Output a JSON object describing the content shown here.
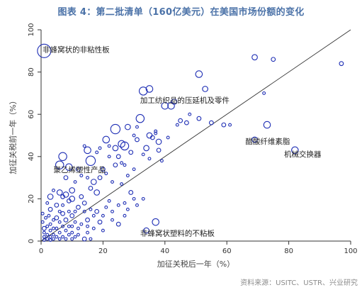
{
  "header": {
    "title": "图表 4：第二批清单（160亿美元）在美国市场份额的变化"
  },
  "footer": {
    "source": "资料来源：USITC、USTR、兴业研究"
  },
  "chart_data": {
    "type": "scatter",
    "title": "图表 4：第二批清单（160亿美元）在美国市场份额的变化",
    "xlabel": "加征关税后一年（%）",
    "ylabel": "加征关税前一年（%）",
    "xlim": [
      0,
      100
    ],
    "ylim": [
      0,
      100
    ],
    "xticks": [
      0,
      20,
      40,
      60,
      80,
      100
    ],
    "yticks": [
      0,
      20,
      40,
      60,
      80,
      100
    ],
    "grid": false,
    "reference_line": {
      "from": [
        0,
        0
      ],
      "to": [
        100,
        100
      ]
    },
    "point_color": "#1f2fb5",
    "annotations": [
      {
        "text": "非蜂窝状的非粘性板",
        "x": 0.5,
        "y": 90.5
      },
      {
        "text": "加工纺织品的压延机及零件",
        "x": 32,
        "y": 66.5
      },
      {
        "text": "醋酸纤维素脂",
        "x": 66,
        "y": 47
      },
      {
        "text": "机械交换器",
        "x": 78.5,
        "y": 41
      },
      {
        "text": "聚乙烯塑性产品",
        "x": 4,
        "y": 33.5
      },
      {
        "text": "非蜂窝状塑料的不粘板",
        "x": 32,
        "y": 3.5
      }
    ],
    "points": [
      [
        1,
        90,
        10
      ],
      [
        69,
        87,
        4
      ],
      [
        75,
        86,
        3
      ],
      [
        97,
        84,
        3
      ],
      [
        51,
        79,
        5
      ],
      [
        53,
        72,
        4
      ],
      [
        33,
        71,
        6
      ],
      [
        35,
        72,
        5
      ],
      [
        43,
        66,
        4
      ],
      [
        40,
        64,
        5
      ],
      [
        42,
        64,
        5
      ],
      [
        51,
        58,
        3
      ],
      [
        55,
        56,
        3
      ],
      [
        59,
        55,
        3
      ],
      [
        31,
        54,
        2
      ],
      [
        32,
        58,
        6
      ],
      [
        28,
        54,
        4
      ],
      [
        24,
        53,
        7
      ],
      [
        21,
        48,
        5
      ],
      [
        35,
        50,
        4
      ],
      [
        38,
        47,
        4
      ],
      [
        31,
        48,
        3
      ],
      [
        36,
        49,
        3
      ],
      [
        37,
        52,
        2
      ],
      [
        30,
        50,
        2
      ],
      [
        34,
        44,
        4
      ],
      [
        38,
        43,
        3
      ],
      [
        24,
        44,
        4
      ],
      [
        26,
        46,
        5
      ],
      [
        27,
        45,
        6
      ],
      [
        29,
        42,
        3
      ],
      [
        25,
        40,
        3
      ],
      [
        15,
        43,
        5
      ],
      [
        16,
        38,
        7
      ],
      [
        14,
        45,
        2
      ],
      [
        18,
        42,
        2
      ],
      [
        19,
        44,
        2
      ],
      [
        22,
        45,
        2
      ],
      [
        22,
        40,
        2
      ],
      [
        26,
        37,
        2
      ],
      [
        27,
        36,
        2
      ],
      [
        33,
        41,
        2
      ],
      [
        35,
        39,
        2
      ],
      [
        20,
        34,
        3
      ],
      [
        21,
        32,
        2
      ],
      [
        24,
        36,
        3
      ],
      [
        19,
        30,
        3
      ],
      [
        17,
        28,
        4
      ],
      [
        15,
        30,
        2
      ],
      [
        16,
        25,
        3
      ],
      [
        18,
        23,
        4
      ],
      [
        23,
        28,
        2
      ],
      [
        26,
        27,
        2
      ],
      [
        13,
        31,
        2
      ],
      [
        12,
        34,
        3
      ],
      [
        11,
        28,
        2
      ],
      [
        10,
        24,
        4
      ],
      [
        9,
        35,
        5
      ],
      [
        7,
        40,
        6
      ],
      [
        6,
        36,
        6
      ],
      [
        8,
        30,
        3
      ],
      [
        10,
        20,
        4
      ],
      [
        8,
        22,
        4
      ],
      [
        9,
        19,
        3
      ],
      [
        7,
        21,
        3
      ],
      [
        6,
        23,
        4
      ],
      [
        5,
        17,
        3
      ],
      [
        4,
        24,
        2
      ],
      [
        3,
        21,
        4
      ],
      [
        3,
        15,
        3
      ],
      [
        2,
        18,
        2
      ],
      [
        13,
        21,
        3
      ],
      [
        14,
        18,
        3
      ],
      [
        12,
        16,
        3
      ],
      [
        11,
        14,
        2
      ],
      [
        10,
        12,
        3
      ],
      [
        8,
        10,
        3
      ],
      [
        7,
        13,
        3
      ],
      [
        6,
        9,
        2
      ],
      [
        5,
        11,
        3
      ],
      [
        4,
        10,
        2
      ],
      [
        3,
        8,
        2
      ],
      [
        2,
        7,
        2
      ],
      [
        1,
        6,
        3
      ],
      [
        1,
        4,
        2
      ],
      [
        2,
        3,
        2
      ],
      [
        3,
        5,
        2
      ],
      [
        4,
        3,
        2
      ],
      [
        5,
        6,
        2
      ],
      [
        6,
        4,
        2
      ],
      [
        7,
        7,
        2
      ],
      [
        8,
        5,
        2
      ],
      [
        9,
        7,
        2
      ],
      [
        10,
        4,
        2
      ],
      [
        11,
        9,
        2
      ],
      [
        12,
        6,
        2
      ],
      [
        1,
        2,
        2
      ],
      [
        2,
        1,
        2
      ],
      [
        3,
        2,
        2
      ],
      [
        4,
        6,
        2
      ],
      [
        0.5,
        9,
        2
      ],
      [
        1.5,
        11,
        2
      ],
      [
        0.5,
        13,
        2
      ],
      [
        2.5,
        12,
        2
      ],
      [
        6,
        14,
        2
      ],
      [
        7,
        17,
        2
      ],
      [
        9,
        14,
        2
      ],
      [
        14,
        14,
        2
      ],
      [
        15,
        10,
        3
      ],
      [
        16,
        15,
        2
      ],
      [
        17,
        12,
        2
      ],
      [
        18,
        14,
        3
      ],
      [
        20,
        12,
        2
      ],
      [
        19,
        9,
        3
      ],
      [
        21,
        16,
        2
      ],
      [
        22,
        19,
        2
      ],
      [
        23,
        14,
        2
      ],
      [
        25,
        17,
        2
      ],
      [
        27,
        18,
        2
      ],
      [
        28,
        15,
        2
      ],
      [
        30,
        20,
        2
      ],
      [
        29,
        23,
        3
      ],
      [
        31,
        17,
        2
      ],
      [
        33,
        20,
        2
      ],
      [
        15,
        7,
        2
      ],
      [
        13,
        8,
        2
      ],
      [
        17,
        6,
        2
      ],
      [
        20,
        5,
        2
      ],
      [
        10,
        7,
        2
      ],
      [
        12,
        3,
        2
      ],
      [
        15,
        4,
        2
      ],
      [
        5,
        2,
        2
      ],
      [
        6,
        1,
        2
      ],
      [
        7,
        2,
        2
      ],
      [
        10,
        1,
        2
      ],
      [
        14,
        1,
        3
      ],
      [
        16,
        1,
        2
      ],
      [
        8,
        1,
        2
      ],
      [
        4,
        1,
        2
      ],
      [
        9,
        3,
        2
      ],
      [
        11,
        2,
        2
      ],
      [
        3,
        0.5,
        2
      ],
      [
        1,
        0.5,
        2
      ],
      [
        37,
        9,
        5
      ],
      [
        34,
        5,
        4
      ],
      [
        25,
        8,
        3
      ],
      [
        27,
        12,
        2
      ],
      [
        23,
        10,
        2
      ],
      [
        69,
        48,
        4
      ],
      [
        73,
        55,
        5
      ],
      [
        82,
        43,
        5
      ],
      [
        72,
        70,
        2
      ],
      [
        61,
        55,
        2
      ],
      [
        39,
        38,
        2
      ],
      [
        44,
        55,
        2
      ],
      [
        41,
        49,
        2
      ],
      [
        37,
        51,
        2
      ],
      [
        30,
        34,
        2
      ],
      [
        28,
        31,
        2
      ],
      [
        45,
        57,
        3
      ],
      [
        47,
        56,
        3
      ],
      [
        48,
        60,
        2
      ]
    ]
  }
}
